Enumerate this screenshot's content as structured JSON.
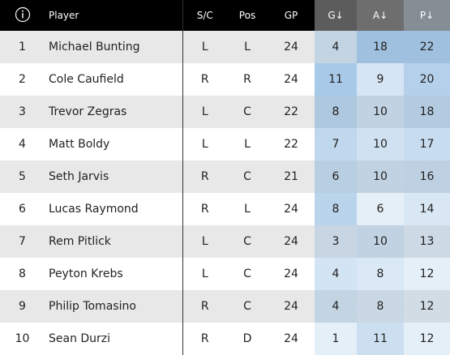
{
  "header": {
    "columns": [
      "Player",
      "S/C",
      "Pos",
      "GP",
      "G↓",
      "A↓",
      "P↓"
    ]
  },
  "table": {
    "rows": [
      [
        1,
        "Michael Bunting",
        "L",
        "L",
        24,
        4,
        18,
        22
      ],
      [
        2,
        "Cole Caufield",
        "R",
        "R",
        24,
        11,
        9,
        20
      ],
      [
        3,
        "Trevor Zegras",
        "L",
        "C",
        22,
        8,
        10,
        18
      ],
      [
        4,
        "Matt Boldy",
        "L",
        "L",
        22,
        7,
        10,
        17
      ],
      [
        5,
        "Seth Jarvis",
        "R",
        "C",
        21,
        6,
        10,
        16
      ],
      [
        6,
        "Lucas Raymond",
        "R",
        "L",
        24,
        8,
        6,
        14
      ],
      [
        7,
        "Rem Pitlick",
        "L",
        "C",
        24,
        3,
        10,
        13
      ],
      [
        8,
        "Peyton Krebs",
        "L",
        "C",
        24,
        4,
        8,
        12
      ],
      [
        9,
        "Philip Tomasino",
        "R",
        "C",
        24,
        4,
        8,
        12
      ],
      [
        10,
        "Sean Durzi",
        "R",
        "D",
        24,
        1,
        11,
        12
      ]
    ]
  }
}
